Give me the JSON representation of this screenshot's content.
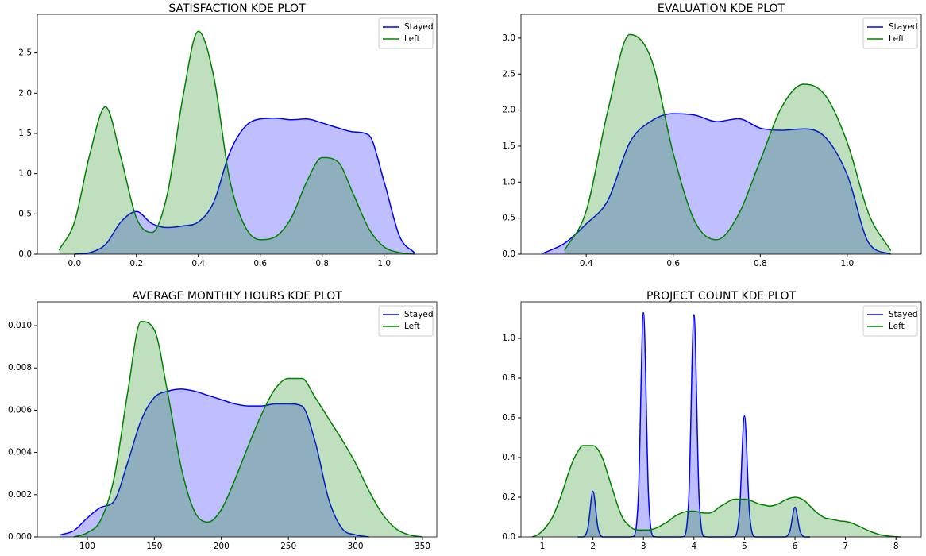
{
  "chart_data": [
    {
      "type": "kde",
      "title": "SATISFACTION KDE PLOT",
      "legend": "upper right",
      "fill_opacity": 0.25,
      "x": [
        -0.1,
        -0.05,
        0,
        0.05,
        0.1,
        0.15,
        0.2,
        0.25,
        0.3,
        0.35,
        0.4,
        0.45,
        0.5,
        0.55,
        0.6,
        0.65,
        0.7,
        0.75,
        0.8,
        0.85,
        0.9,
        0.95,
        1.0,
        1.05,
        1.1
      ],
      "series": [
        {
          "name": "Stayed",
          "color": "#0000ff",
          "values": [
            null,
            null,
            0,
            0.02,
            0.12,
            0.4,
            0.53,
            0.38,
            0.33,
            0.35,
            0.4,
            0.65,
            1.25,
            1.58,
            1.68,
            1.69,
            1.67,
            1.68,
            1.63,
            1.57,
            1.52,
            1.48,
            0.9,
            0.22,
            0.01
          ]
        },
        {
          "name": "Left",
          "color": "#008000",
          "values": [
            null,
            0.05,
            0.4,
            1.25,
            1.83,
            1.2,
            0.45,
            0.27,
            0.75,
            1.95,
            2.77,
            2.2,
            0.95,
            0.35,
            0.18,
            0.22,
            0.45,
            0.9,
            1.2,
            1.15,
            0.75,
            0.32,
            0.09,
            0.02,
            0
          ]
        }
      ],
      "xlim": [
        -0.12,
        1.17
      ],
      "xticks": [
        {
          "value": 0,
          "label": "0.0"
        },
        0.2,
        0.4,
        0.6,
        0.8,
        {
          "value": 1,
          "label": "1.0"
        }
      ],
      "ylim": [
        0,
        2.98
      ],
      "yticks": [
        {
          "value": 0,
          "label": "0.0"
        },
        0.5,
        {
          "value": 1,
          "label": "1.0"
        },
        1.5,
        {
          "value": 2,
          "label": "2.0"
        },
        2.5
      ]
    },
    {
      "type": "kde",
      "title": "EVALUATION KDE PLOT",
      "legend": "upper right",
      "fill_opacity": 0.25,
      "x": [
        0.3,
        0.35,
        0.4,
        0.45,
        0.5,
        0.55,
        0.6,
        0.65,
        0.7,
        0.75,
        0.8,
        0.85,
        0.9,
        0.95,
        1.0,
        1.05,
        1.1
      ],
      "series": [
        {
          "name": "Stayed",
          "color": "#0000ff",
          "values": [
            0.01,
            0.15,
            0.42,
            0.75,
            1.55,
            1.85,
            1.95,
            1.93,
            1.84,
            1.88,
            1.75,
            1.72,
            1.74,
            1.62,
            1.1,
            0.15,
            0
          ]
        },
        {
          "name": "Left",
          "color": "#008000",
          "values": [
            null,
            0.05,
            0.6,
            2.0,
            3.05,
            2.7,
            1.4,
            0.45,
            0.2,
            0.55,
            1.3,
            2.05,
            2.36,
            2.2,
            1.55,
            0.55,
            0.05
          ]
        }
      ],
      "xlim": [
        0.25,
        1.17
      ],
      "xticks": [
        0.4,
        0.6,
        0.8,
        {
          "value": 1,
          "label": "1.0"
        }
      ],
      "ylim": [
        0,
        3.33
      ],
      "yticks": [
        {
          "value": 0,
          "label": "0.0"
        },
        0.5,
        {
          "value": 1,
          "label": "1.0"
        },
        1.5,
        {
          "value": 2,
          "label": "2.0"
        },
        2.5,
        {
          "value": 3,
          "label": "3.0"
        }
      ]
    },
    {
      "type": "kde",
      "title": "AVERAGE MONTHLY HOURS KDE PLOT",
      "legend": "upper right",
      "fill_opacity": 0.25,
      "x": [
        70,
        80,
        90,
        100,
        110,
        120,
        130,
        140,
        150,
        160,
        170,
        180,
        190,
        200,
        210,
        220,
        230,
        240,
        250,
        260,
        270,
        280,
        290,
        300,
        310,
        320,
        330,
        340,
        350
      ],
      "series": [
        {
          "name": "Stayed",
          "color": "#0000ff",
          "values": [
            null,
            0.0001,
            0.0003,
            0.0009,
            0.0014,
            0.0017,
            0.0035,
            0.0055,
            0.0066,
            0.0069,
            0.007,
            0.0069,
            0.0067,
            0.0065,
            0.0063,
            0.0062,
            0.0062,
            0.0063,
            0.0063,
            0.0062,
            0.0045,
            0.0018,
            0.0004,
            0.0001,
            0,
            null,
            null,
            null,
            null
          ]
        },
        {
          "name": "Left",
          "color": "#008000",
          "values": [
            null,
            null,
            0,
            0.0002,
            0.0008,
            0.0028,
            0.0068,
            0.0102,
            0.0098,
            0.0068,
            0.0033,
            0.0012,
            0.0007,
            0.0013,
            0.0027,
            0.0043,
            0.0058,
            0.007,
            0.0075,
            0.0075,
            0.0066,
            0.0056,
            0.0046,
            0.0035,
            0.0022,
            0.0011,
            0.0004,
            0.0001,
            0
          ]
        }
      ],
      "xlim": [
        62.7,
        360.7
      ],
      "xticks": [
        100,
        150,
        200,
        250,
        300,
        350
      ],
      "ylim": [
        0,
        0.01113
      ],
      "yticks": [
        {
          "value": 0,
          "label": "0.000"
        },
        {
          "value": 0.002,
          "label": "0.002"
        },
        {
          "value": 0.004,
          "label": "0.004"
        },
        {
          "value": 0.006,
          "label": "0.006"
        },
        {
          "value": 0.008,
          "label": "0.008"
        },
        {
          "value": 0.01,
          "label": "0.010"
        }
      ]
    },
    {
      "type": "kde",
      "title": "PROJECT COUNT KDE PLOT",
      "legend": "upper right",
      "fill_opacity": 0.25,
      "x": [
        0.8,
        0.9,
        1.0,
        1.1,
        1.2,
        1.3,
        1.4,
        1.5,
        1.6,
        1.7,
        1.8,
        1.9,
        2.0,
        2.1,
        2.2,
        2.3,
        2.4,
        2.5,
        2.6,
        2.7,
        2.8,
        2.9,
        3.0,
        3.1,
        3.2,
        3.3,
        3.4,
        3.5,
        3.6,
        3.7,
        3.8,
        3.9,
        4.0,
        4.1,
        4.2,
        4.3,
        4.4,
        4.5,
        4.6,
        4.7,
        4.8,
        4.9,
        5.0,
        5.1,
        5.2,
        5.3,
        5.4,
        5.5,
        5.6,
        5.7,
        5.8,
        5.9,
        6.0,
        6.1,
        6.2,
        6.3,
        6.4,
        6.5,
        6.6,
        6.7,
        6.8,
        6.9,
        7.0,
        7.1,
        7.2,
        7.3,
        7.4,
        7.5,
        7.6,
        7.7,
        7.8,
        7.9,
        8.0,
        8.1,
        8.2
      ],
      "series": [
        {
          "name": "Stayed",
          "color": "#0000ff",
          "values": [
            null,
            null,
            null,
            null,
            null,
            null,
            null,
            null,
            null,
            0,
            0,
            0.045,
            0.23,
            0.045,
            0,
            0,
            0,
            0,
            0,
            0,
            0.002,
            0.21,
            1.13,
            0.21,
            0.002,
            0,
            0,
            0,
            0,
            0,
            0.002,
            0.21,
            1.12,
            0.21,
            0.002,
            0,
            0,
            0,
            0,
            0,
            0.001,
            0.12,
            0.61,
            0.12,
            0.001,
            0,
            0,
            0,
            0,
            0,
            0,
            0.03,
            0.15,
            0.03,
            0,
            0,
            null,
            null,
            null,
            null,
            null,
            null,
            null,
            null,
            null,
            null,
            null,
            null,
            null,
            null,
            null,
            null,
            null,
            null,
            null
          ]
        },
        {
          "name": "Left",
          "color": "#008000",
          "values": [
            0,
            0.01,
            0.03,
            0.06,
            0.1,
            0.16,
            0.23,
            0.31,
            0.38,
            0.43,
            0.46,
            0.46,
            0.46,
            0.44,
            0.39,
            0.31,
            0.23,
            0.15,
            0.09,
            0.06,
            0.04,
            0.035,
            0.035,
            0.035,
            0.04,
            0.05,
            0.065,
            0.08,
            0.1,
            0.115,
            0.125,
            0.13,
            0.13,
            0.125,
            0.12,
            0.12,
            0.13,
            0.15,
            0.165,
            0.18,
            0.19,
            0.19,
            0.19,
            0.185,
            0.175,
            0.165,
            0.16,
            0.155,
            0.16,
            0.17,
            0.185,
            0.195,
            0.2,
            0.195,
            0.18,
            0.155,
            0.13,
            0.11,
            0.095,
            0.09,
            0.085,
            0.08,
            0.078,
            0.072,
            0.062,
            0.05,
            0.038,
            0.027,
            0.018,
            0.01,
            0.006,
            0.003,
            0.001,
            0,
            null
          ]
        }
      ],
      "xlim": [
        0.575,
        8.5
      ],
      "xticks": [
        1,
        2,
        3,
        4,
        5,
        6,
        7,
        8
      ],
      "ylim": [
        0,
        1.184
      ],
      "yticks": [
        {
          "value": 0,
          "label": "0.0"
        },
        0.2,
        0.4,
        0.6,
        0.8,
        {
          "value": 1,
          "label": "1.0"
        }
      ]
    }
  ]
}
